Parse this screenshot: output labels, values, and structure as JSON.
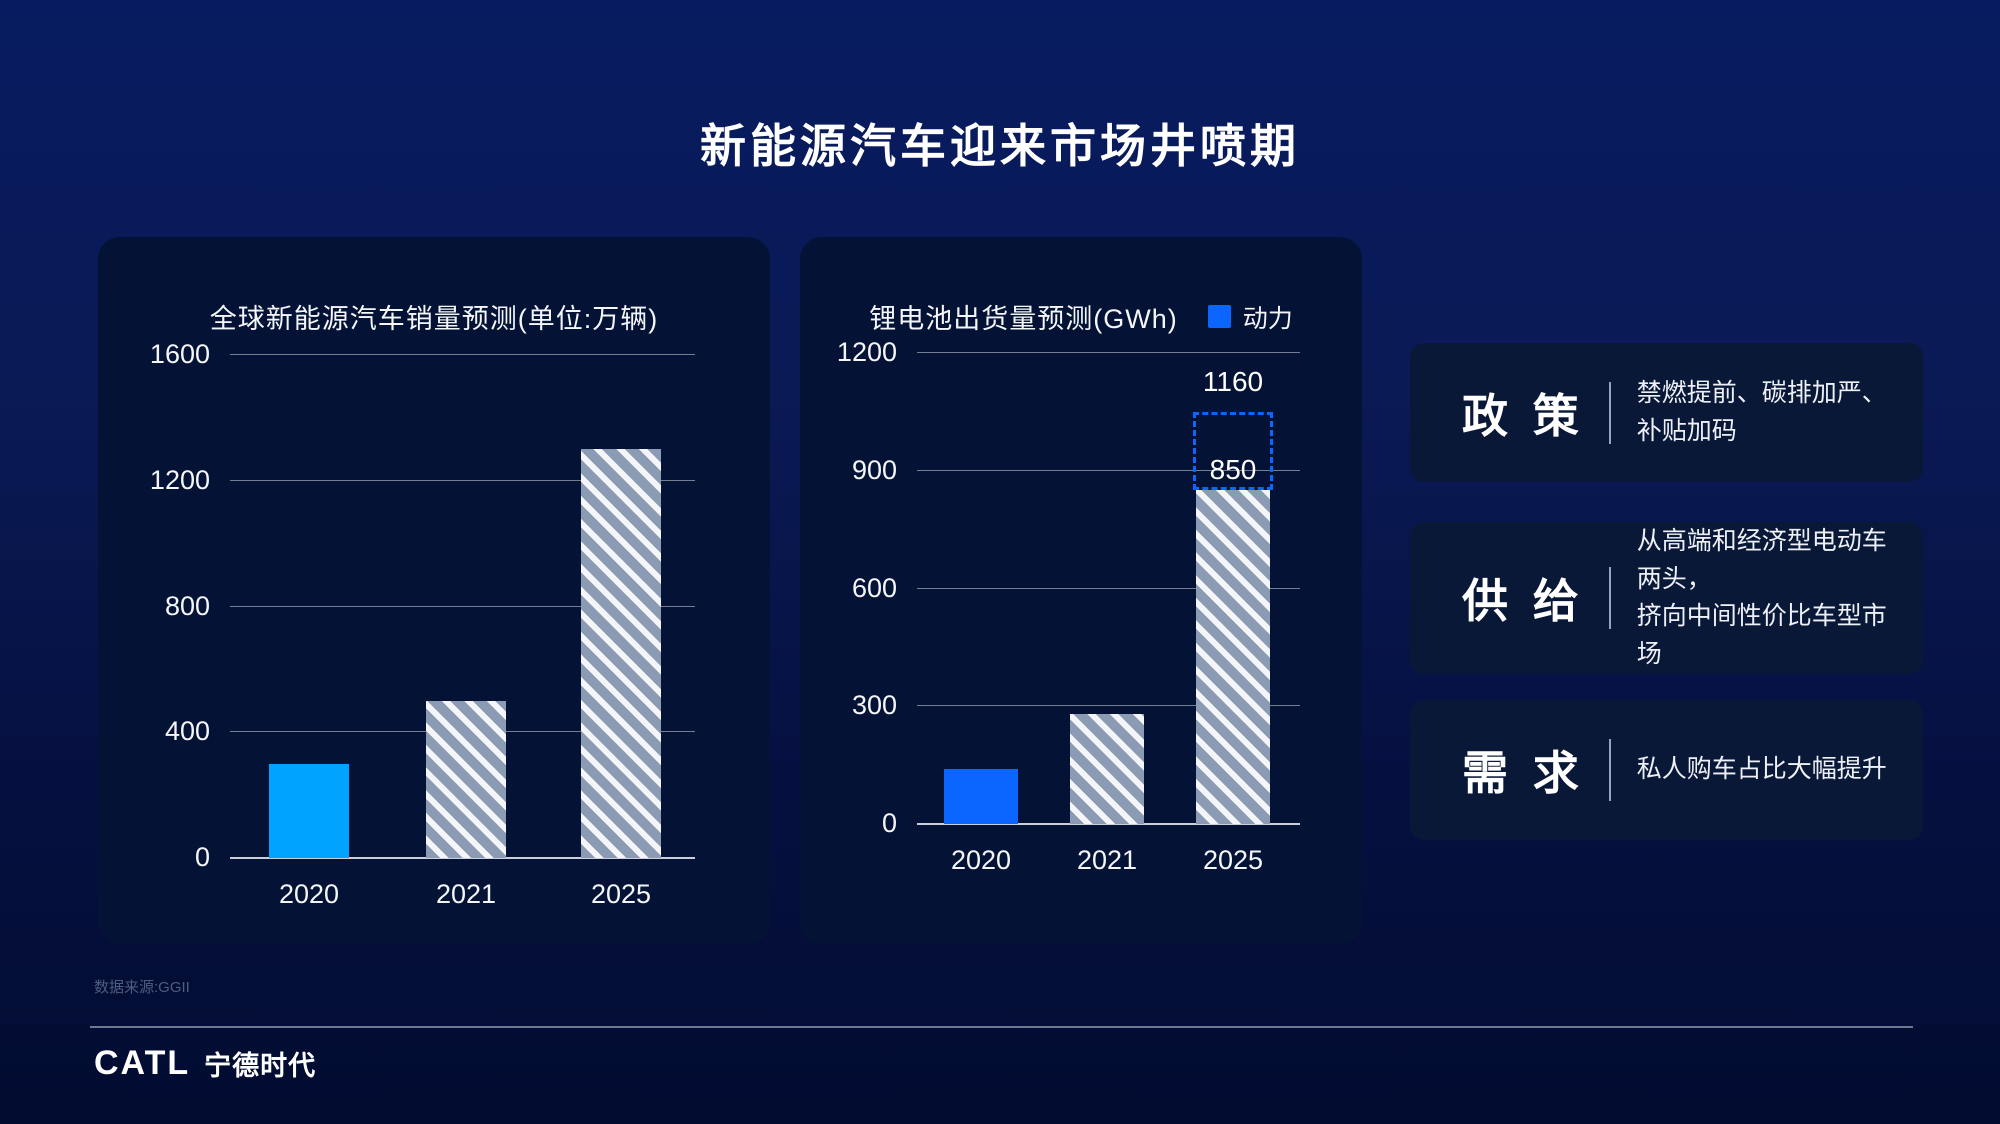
{
  "page": {
    "title": "新能源汽车迎来市场井喷期",
    "source_note": "数据来源:GGII",
    "logo": {
      "latin": "CATL",
      "cjk": "宁德时代"
    }
  },
  "chart_data": [
    {
      "type": "bar",
      "title": "全球新能源汽车销量预测(单位:万辆)",
      "categories": [
        "2020",
        "2021",
        "2025"
      ],
      "values": [
        300,
        500,
        1300
      ],
      "ylim": [
        0,
        1600
      ],
      "yticks": [
        0,
        400,
        800,
        1200,
        1600
      ],
      "grid": true,
      "bar_styles": [
        "solid",
        "hatch",
        "hatch"
      ],
      "solid_color": "#00A3FF",
      "bar_labels": [
        null,
        null,
        null
      ]
    },
    {
      "type": "bar",
      "title": "锂电池出货量预测(GWh)",
      "legend": [
        {
          "label": "动力",
          "color": "#0A66FF"
        }
      ],
      "legend_position": "top-right",
      "categories": [
        "2020",
        "2021",
        "2025"
      ],
      "values": [
        140,
        280,
        850
      ],
      "ylim": [
        0,
        1200
      ],
      "yticks": [
        0,
        300,
        600,
        900,
        1200
      ],
      "grid": true,
      "bar_styles": [
        "solid",
        "hatch",
        "hatch"
      ],
      "solid_color": "#0A66FF",
      "bar_labels": [
        null,
        null,
        "850"
      ],
      "ghost": {
        "index": 2,
        "value": 1160,
        "label": "1160",
        "style": "dashed-outline",
        "color": "#0A66FF"
      }
    }
  ],
  "info_panels": [
    {
      "heading": "政 策",
      "desc": "禁燃提前、碳排加严、补贴加码"
    },
    {
      "heading": "供 给",
      "desc": "从高端和经济型电动车两头，\n挤向中间性价比车型市场"
    },
    {
      "heading": "需 求",
      "desc": "私人购车占比大幅提升"
    }
  ],
  "colors": {
    "background_top": "#071B60",
    "background_bottom": "#020C30",
    "card_bg": "#041335",
    "panel_bg": "#0A1838",
    "accent_blue": "#0A66FF",
    "cyan_blue": "#00A3FF",
    "hatch_base": "#8B9BB4",
    "gridline": "rgba(255,255,255,0.45)",
    "axis_line": "#C9CFDB"
  }
}
